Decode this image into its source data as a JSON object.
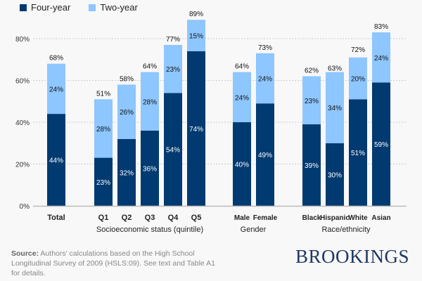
{
  "chart_data": {
    "type": "bar",
    "stacked": true,
    "legend": [
      {
        "name": "Four-year",
        "color": "#003a70"
      },
      {
        "name": "Two-year",
        "color": "#8ec6ff"
      }
    ],
    "legend_placement": "top-left",
    "ylim": [
      0,
      80
    ],
    "yticks": [
      "0%",
      "20%",
      "40%",
      "60%",
      "80%"
    ],
    "ytick_values": [
      0,
      20,
      40,
      60,
      80
    ],
    "grid": true,
    "groups": [
      {
        "label": "",
        "categories": [
          "Total"
        ]
      },
      {
        "label": "Socioeconomic status (quintile)",
        "categories": [
          "Q1",
          "Q2",
          "Q3",
          "Q4",
          "Q5"
        ]
      },
      {
        "label": "Gender",
        "categories": [
          "Male",
          "Female"
        ]
      },
      {
        "label": "Race/ethnicity",
        "categories": [
          "Black",
          "Hispanic",
          "White",
          "Asian"
        ]
      }
    ],
    "categories": [
      "Total",
      "Q1",
      "Q2",
      "Q3",
      "Q4",
      "Q5",
      "Male",
      "Female",
      "Black",
      "Hispanic",
      "White",
      "Asian"
    ],
    "series": [
      {
        "name": "Four-year",
        "values": [
          44,
          23,
          32,
          36,
          54,
          74,
          40,
          49,
          39,
          30,
          51,
          59
        ],
        "labels": [
          "44%",
          "23%",
          "32%",
          "36%",
          "54%",
          "74%",
          "40%",
          "49%",
          "39%",
          "30%",
          "51%",
          "59%"
        ]
      },
      {
        "name": "Two-year",
        "values": [
          24,
          28,
          26,
          28,
          23,
          15,
          24,
          24,
          23,
          34,
          20,
          24
        ],
        "labels": [
          "24%",
          "28%",
          "26%",
          "28%",
          "23%",
          "15%",
          "24%",
          "24%",
          "23%",
          "34%",
          "20%",
          "24%"
        ]
      }
    ],
    "totals": [
      "68%",
      "51%",
      "58%",
      "64%",
      "77%",
      "89%",
      "64%",
      "73%",
      "62%",
      "63%",
      "72%",
      "83%"
    ],
    "totals_values": [
      68,
      51,
      58,
      64,
      77,
      89,
      64,
      73,
      62,
      63,
      72,
      83
    ]
  },
  "footer": {
    "source_label": "Source:",
    "source_text": " Authors' calculations based on the High School Longitudinal Survey of 2009 (HSLS:09). See text and Table A1 for details."
  },
  "logo": "BROOKINGS"
}
